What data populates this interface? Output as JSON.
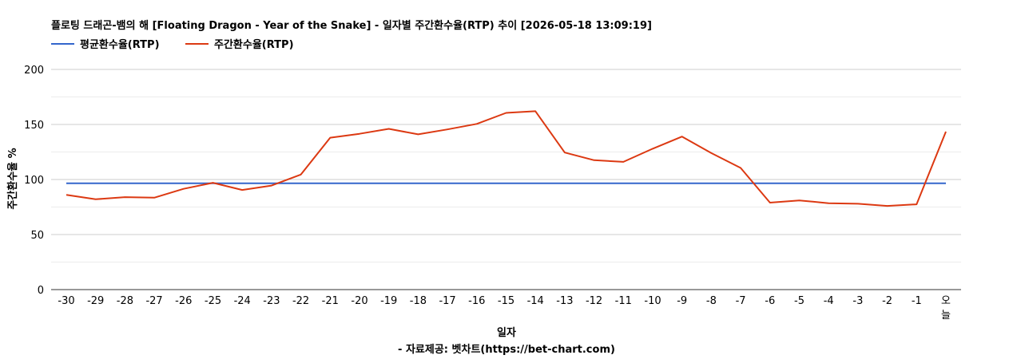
{
  "chart_data": {
    "type": "line",
    "title": "플로팅 드래곤-뱀의 해 [Floating Dragon - Year of the Snake] - 일자별 주간환수율(RTP) 추이 [2026-05-18 13:09:19]",
    "xlabel": "일자",
    "ylabel": "주간환수율 %",
    "source": "- 자료제공: 벳차트(https://bet-chart.com)",
    "ylim": [
      0,
      200
    ],
    "yticks": [
      0,
      50,
      100,
      150,
      200
    ],
    "legend_position": "top-left",
    "grid": true,
    "categories": [
      "-30",
      "-29",
      "-28",
      "-27",
      "-26",
      "-25",
      "-24",
      "-23",
      "-22",
      "-21",
      "-20",
      "-19",
      "-18",
      "-17",
      "-16",
      "-15",
      "-14",
      "-13",
      "-12",
      "-11",
      "-10",
      "-9",
      "-8",
      "-7",
      "-6",
      "-5",
      "-4",
      "-3",
      "-2",
      "-1",
      "오늘"
    ],
    "series": [
      {
        "name": "평균환수율(RTP)",
        "color": "#3366cc",
        "values": [
          96.5,
          96.5,
          96.5,
          96.5,
          96.5,
          96.5,
          96.5,
          96.5,
          96.5,
          96.5,
          96.5,
          96.5,
          96.5,
          96.5,
          96.5,
          96.5,
          96.5,
          96.5,
          96.5,
          96.5,
          96.5,
          96.5,
          96.5,
          96.5,
          96.5,
          96.5,
          96.5,
          96.5,
          96.5,
          96.5,
          96.5
        ]
      },
      {
        "name": "주간환수율(RTP)",
        "color": "#dc3912",
        "values": [
          86,
          82,
          84,
          83.5,
          91.5,
          97,
          90.5,
          94.5,
          104.5,
          138,
          141.5,
          146,
          141,
          145.5,
          150.5,
          160.5,
          162,
          124.5,
          117.5,
          116,
          128,
          139,
          124,
          110.5,
          79,
          81,
          78.5,
          78,
          76,
          77.5,
          143.5
        ]
      }
    ]
  }
}
